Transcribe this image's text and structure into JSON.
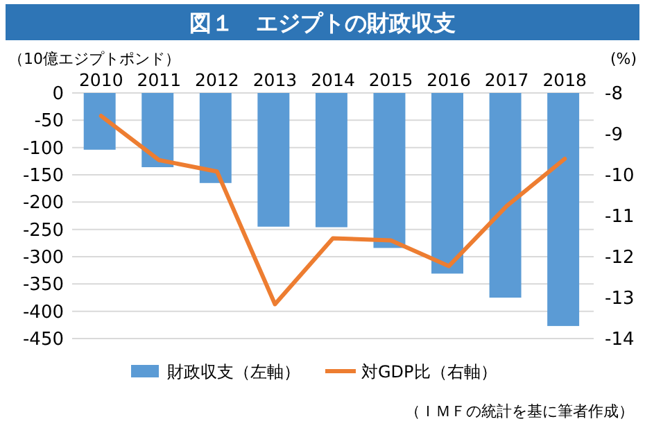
{
  "chart_data": {
    "type": "bar",
    "title": "図１　エジプトの財政収支",
    "ylabel": "（10億エジプトポンド）",
    "y2label": "(%)",
    "categories": [
      "2010",
      "2011",
      "2012",
      "2013",
      "2014",
      "2015",
      "2016",
      "2017",
      "2018"
    ],
    "series": [
      {
        "name": "財政収支（左軸）",
        "color": "#5b9bd5",
        "values": [
          -104,
          -136,
          -165,
          -245,
          -246,
          -284,
          -331,
          -375,
          -427
        ]
      },
      {
        "name": "対GDP比（右軸）",
        "type": "line",
        "axis": "y2",
        "color": "#ed7d31",
        "values": [
          -8.56,
          -9.64,
          -9.92,
          -13.16,
          -11.55,
          -11.6,
          -12.23,
          -10.76,
          -9.61
        ]
      }
    ],
    "ylim": [
      -450,
      0
    ],
    "yticks": [
      0,
      -50,
      -100,
      -150,
      -200,
      -250,
      -300,
      -350,
      -400,
      -450
    ],
    "y2lim": [
      -14,
      -8
    ],
    "y2ticks": [
      -8,
      -9,
      -10,
      -11,
      -12,
      -13,
      -14
    ],
    "grid": "y",
    "legend": "bottom",
    "marker": "none",
    "line_style": "solid",
    "annotations": [
      "（ＩＭＦの統計を基に筆者作成）"
    ]
  }
}
